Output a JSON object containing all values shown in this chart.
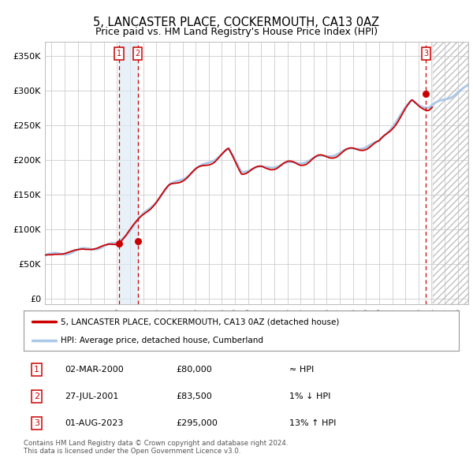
{
  "title": "5, LANCASTER PLACE, COCKERMOUTH, CA13 0AZ",
  "subtitle": "Price paid vs. HM Land Registry's House Price Index (HPI)",
  "title_fontsize": 10.5,
  "subtitle_fontsize": 9,
  "ylabel_ticks": [
    "£0",
    "£50K",
    "£100K",
    "£150K",
    "£200K",
    "£250K",
    "£300K",
    "£350K"
  ],
  "ytick_values": [
    0,
    50000,
    100000,
    150000,
    200000,
    250000,
    300000,
    350000
  ],
  "ylim": [
    -8000,
    370000
  ],
  "xlim_start": 1994.5,
  "xlim_end": 2026.8,
  "line_color_hpi": "#aac8e8",
  "line_color_price": "#cc0000",
  "dot_color": "#cc0000",
  "purchase_dates": [
    2000.17,
    2001.57,
    2023.58
  ],
  "purchase_values": [
    80000,
    83500,
    295000
  ],
  "sale_labels": [
    "1",
    "2",
    "3"
  ],
  "legend_label_price": "5, LANCASTER PLACE, COCKERMOUTH, CA13 0AZ (detached house)",
  "legend_label_hpi": "HPI: Average price, detached house, Cumberland",
  "table_rows": [
    [
      "1",
      "02-MAR-2000",
      "£80,000",
      "≈ HPI"
    ],
    [
      "2",
      "27-JUL-2001",
      "£83,500",
      "1% ↓ HPI"
    ],
    [
      "3",
      "01-AUG-2023",
      "£295,000",
      "13% ↑ HPI"
    ]
  ],
  "footnote": "Contains HM Land Registry data © Crown copyright and database right 2024.\nThis data is licensed under the Open Government Licence v3.0.",
  "background_color": "#ffffff",
  "grid_color": "#cccccc",
  "shade_between_sales_color": "#dce9f5",
  "future_start": 2024.08
}
